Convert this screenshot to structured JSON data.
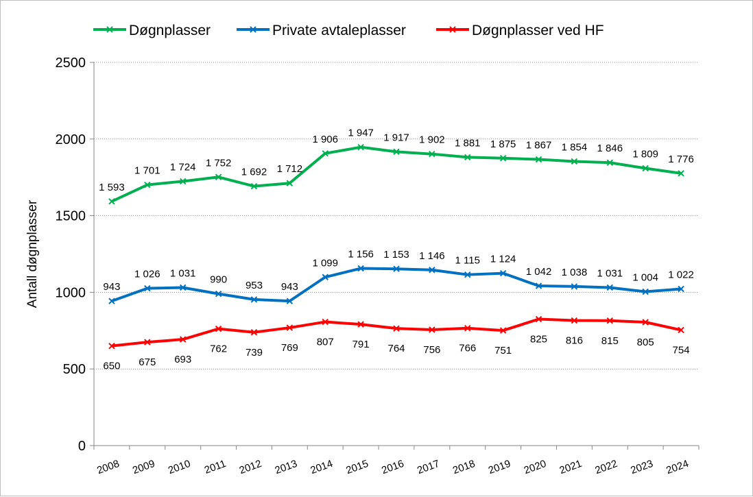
{
  "chart_data": {
    "type": "line",
    "title": "",
    "xlabel": "",
    "ylabel": "Antall døgnplasser",
    "ylim": [
      0,
      2500
    ],
    "yticks": [
      0,
      500,
      1000,
      1500,
      2000,
      2500
    ],
    "grid": "horizontal dotted",
    "legend": "top",
    "categories": [
      "2008",
      "2009",
      "2010",
      "2011",
      "2012",
      "2013",
      "2014",
      "2015",
      "2016",
      "2017",
      "2018",
      "2019",
      "2020",
      "2021",
      "2022",
      "2023",
      "2024"
    ],
    "series": [
      {
        "name": "Døgnplasser",
        "color": "#00b050",
        "label_pos": "above",
        "values": [
          1593,
          1701,
          1724,
          1752,
          1692,
          1712,
          1906,
          1947,
          1917,
          1902,
          1881,
          1875,
          1867,
          1854,
          1846,
          1809,
          1776
        ]
      },
      {
        "name": "Private avtaleplasser",
        "color": "#0070c0",
        "label_pos": "above",
        "values": [
          943,
          1026,
          1031,
          990,
          953,
          943,
          1099,
          1156,
          1153,
          1146,
          1115,
          1124,
          1042,
          1038,
          1031,
          1004,
          1022
        ]
      },
      {
        "name": "Døgnplasser ved HF",
        "color": "#ff0000",
        "label_pos": "below",
        "values": [
          650,
          675,
          693,
          762,
          739,
          769,
          807,
          791,
          764,
          756,
          766,
          751,
          825,
          816,
          815,
          805,
          754
        ]
      }
    ]
  }
}
